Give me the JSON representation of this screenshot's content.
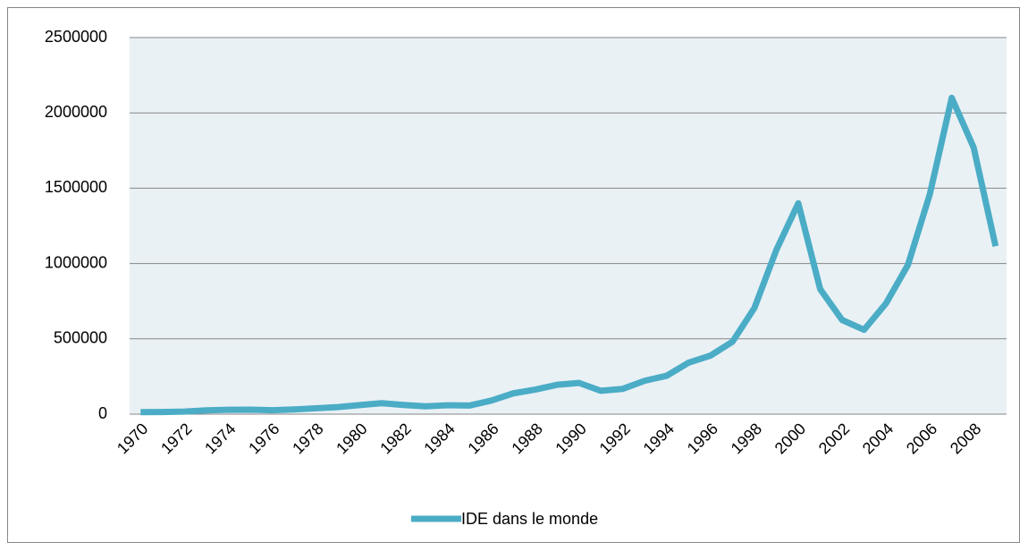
{
  "chart_data": {
    "type": "line",
    "categories": [
      "1970",
      null,
      "1972",
      null,
      "1974",
      null,
      "1976",
      null,
      "1978",
      null,
      "1980",
      null,
      "1982",
      null,
      "1984",
      null,
      "1986",
      null,
      "1988",
      null,
      "1990",
      null,
      "1992",
      null,
      "1994",
      null,
      "1996",
      null,
      "1998",
      null,
      "2000",
      null,
      "2002",
      null,
      "2004",
      null,
      "2006",
      null,
      "2008",
      null
    ],
    "series": [
      {
        "name": "IDE dans le monde",
        "color": "#4bacc6",
        "values": [
          13000,
          14000,
          17000,
          25000,
          29000,
          30000,
          26000,
          31000,
          39000,
          47000,
          60000,
          73000,
          61000,
          52000,
          59000,
          57000,
          90000,
          138000,
          163000,
          195000,
          207000,
          155000,
          168000,
          222000,
          255000,
          342000,
          389000,
          481000,
          705000,
          1090000,
          1400000,
          830000,
          625000,
          560000,
          735000,
          990000,
          1460000,
          2100000,
          1770000,
          1115000
        ]
      }
    ],
    "ylim": [
      0,
      2500000
    ],
    "yticks": [
      0,
      500000,
      1000000,
      1500000,
      2000000,
      2500000
    ],
    "grid": true,
    "legend": "bottom"
  }
}
